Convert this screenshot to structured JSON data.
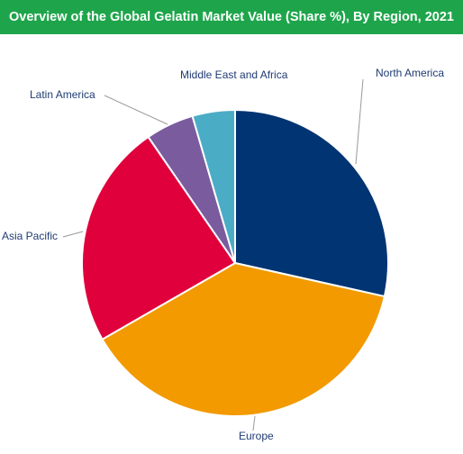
{
  "chart_data": {
    "type": "pie",
    "title": "Overview of the Global Gelatin Market Value (Share %), By Region, 2021",
    "categories": [
      "North America",
      "Europe",
      "Asia Pacific",
      "Latin America",
      "Middle East and Africa"
    ],
    "values": [
      28.5,
      38.2,
      23.7,
      5.1,
      4.5
    ],
    "colors": [
      "#003473",
      "#f29a00",
      "#e0003c",
      "#7a5c9e",
      "#4bacc6"
    ]
  }
}
